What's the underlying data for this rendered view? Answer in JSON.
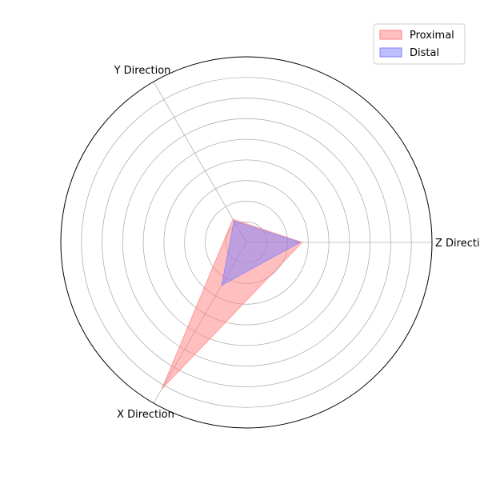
{
  "chart_data": {
    "type": "radar",
    "title": "",
    "axes": [
      "Z Direction",
      "Y Direction",
      "X Direction"
    ],
    "rlim": [
      0,
      4.5
    ],
    "rings": [
      0.5,
      1.0,
      1.5,
      2.0,
      2.5,
      3.0,
      3.5,
      4.0
    ],
    "grid": true,
    "legend_position": "top-right",
    "series": [
      {
        "name": "Proximal",
        "values": [
          1.35,
          0.65,
          4.1
        ],
        "color": "#ff8080",
        "opacity": 0.5
      },
      {
        "name": "Distal",
        "values": [
          1.3,
          0.6,
          1.2
        ],
        "color": "#8080ff",
        "opacity": 0.5
      }
    ]
  }
}
